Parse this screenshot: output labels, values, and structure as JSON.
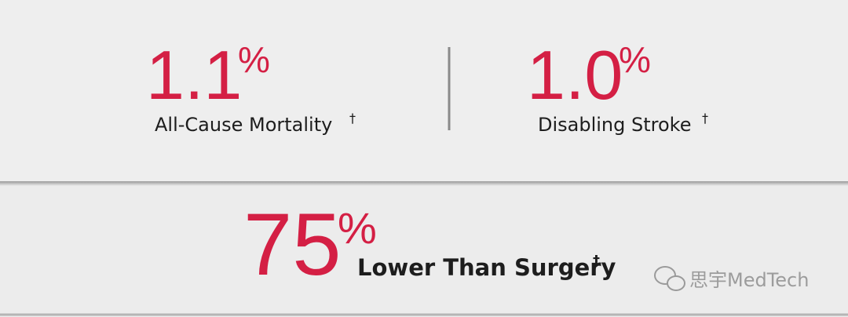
{
  "stats": [
    {
      "value": "1.1",
      "unit": "%",
      "label": "All-Cause Mortality",
      "note": "†"
    },
    {
      "value": "1.0",
      "unit": "%",
      "label": "Disabling Stroke",
      "note": "†"
    },
    {
      "value": "75",
      "unit": "%",
      "label": "Lower Than Surgery",
      "note": "†"
    }
  ],
  "watermark": "思宇MedTech"
}
